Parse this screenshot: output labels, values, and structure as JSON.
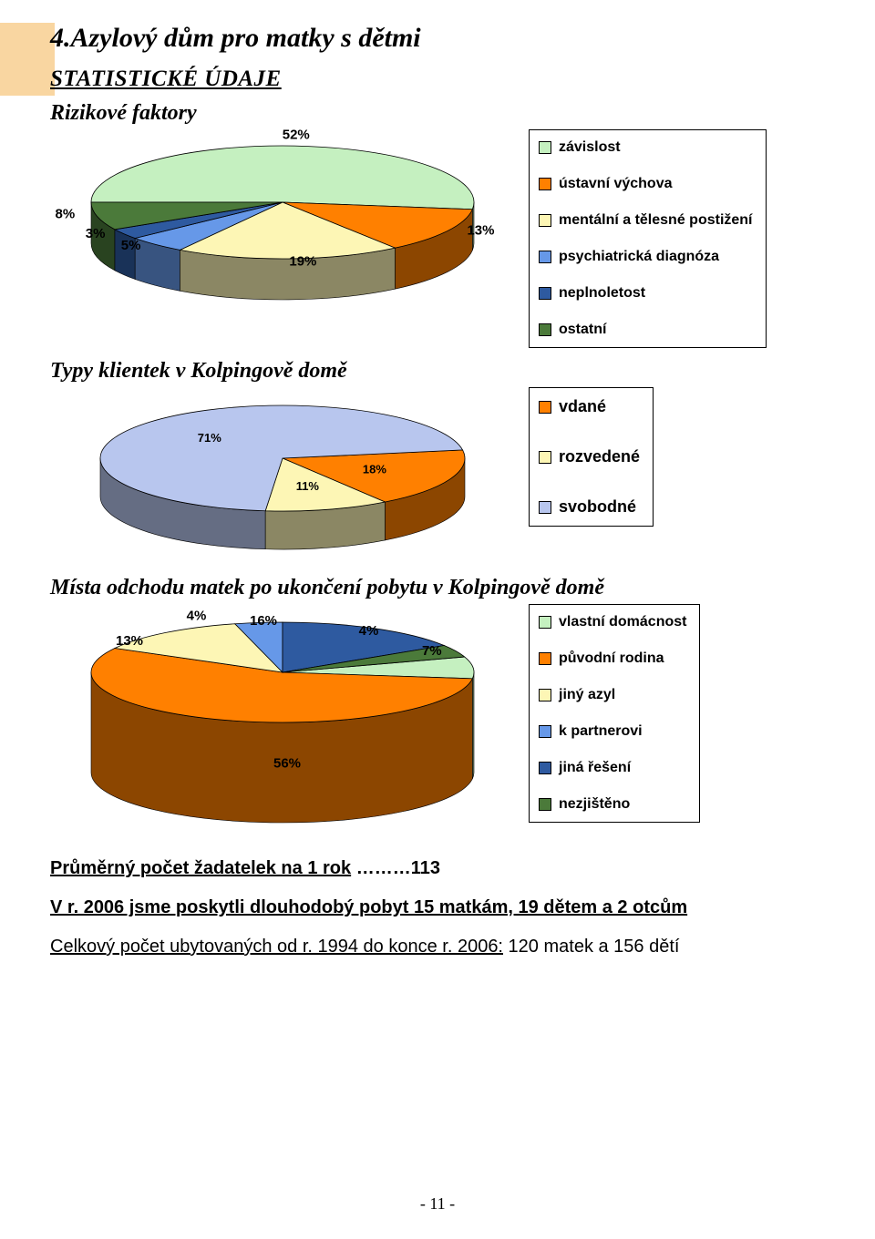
{
  "headings": {
    "title": "4.Azylový dům pro matky s dětmi",
    "subtitle": "STATISTICKÉ ÚDAJE",
    "chart1": "Rizikové faktory",
    "chart2": "Typy klientek v Kolpingově domě",
    "chart3": "Místa odchodu matek po ukončení pobytu v Kolpingově domě"
  },
  "page_number": "- 11 -",
  "accent_color": "#f9d6a1",
  "chart1": {
    "type": "pie3d",
    "slices": [
      {
        "label": "závislost",
        "pct": 52,
        "color": "#c5f0c0"
      },
      {
        "label": "ústavní výchova",
        "pct": 13,
        "color": "#ff8000"
      },
      {
        "label": "mentální a tělesné postižení",
        "pct": 19,
        "color": "#fdf6b5"
      },
      {
        "label": "psychiatrická diagnóza",
        "pct": 5,
        "color": "#6698e8"
      },
      {
        "label": "neplnoletost",
        "pct": 3,
        "color": "#2e5aa0"
      },
      {
        "label": "ostatní",
        "pct": 8,
        "color": "#4b7a3a"
      }
    ],
    "label_fontsize": 15,
    "legend_fontsize": 16,
    "legend_gap": 22,
    "label_color": "#000000",
    "background_color": "#ffffff",
    "legend_border": "#000000"
  },
  "chart2": {
    "type": "pie3d",
    "slices": [
      {
        "label": "vdané",
        "pct": 18,
        "color": "#ff8000"
      },
      {
        "label": "rozvedené",
        "pct": 11,
        "color": "#fdf6b5"
      },
      {
        "label": "svobodné",
        "pct": 71,
        "color": "#b8c6ee"
      }
    ],
    "label_fontsize": 13,
    "legend_fontsize": 18,
    "legend_gap": 34,
    "label_color": "#000000",
    "background_color": "#ffffff",
    "legend_border": "#000000"
  },
  "chart3": {
    "type": "pie3d",
    "slices": [
      {
        "label": "vlastní domácnost",
        "pct": 7,
        "color": "#c5f0c0"
      },
      {
        "label": "původní rodina",
        "pct": 56,
        "color": "#ff8000"
      },
      {
        "label": "jiný azyl",
        "pct": 13,
        "color": "#fdf6b5"
      },
      {
        "label": "k partnerovi",
        "pct": 4,
        "color": "#6698e8",
        "label_pos": "top-left"
      },
      {
        "label": "jiná řešení",
        "pct": 16,
        "color": "#2e5aa0"
      },
      {
        "label": "nezjištěno",
        "pct": 4,
        "color": "#4b7a3a",
        "label_pos": "top-right"
      }
    ],
    "label_fontsize": 15,
    "legend_fontsize": 16,
    "legend_gap": 22,
    "label_color": "#000000",
    "background_color": "#ffffff",
    "legend_border": "#000000"
  },
  "bottom": {
    "line1_u": "Průměrný počet žadatelek na 1 rok",
    "line1_rest": " ………113",
    "line2_b": "V r. 2006 jsme poskytli dlouhodobý pobyt 15 matkám, 19 dětem a 2 otcům",
    "line3_u_pre": "Celkový počet ubytovaných od r. 1994 do konce r. 2006:",
    "line3_rest": "  120 matek a 156 dětí"
  }
}
